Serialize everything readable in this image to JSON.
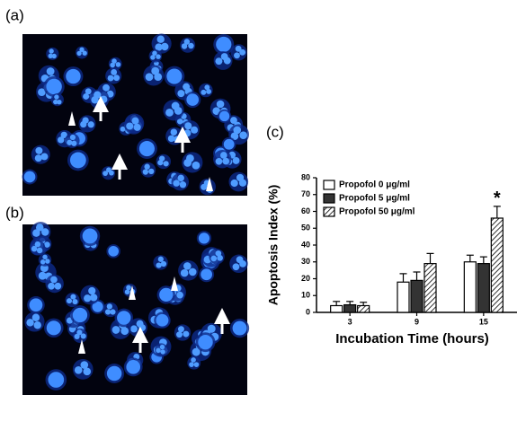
{
  "panels": {
    "a": "(a)",
    "b": "(b)",
    "c": "(c)"
  },
  "chart_data": {
    "type": "bar",
    "y_label": "Apoptosis Index (%)",
    "x_label": "Incubation Time (hours)",
    "categories": [
      "3",
      "9",
      "15"
    ],
    "series": [
      {
        "name": "Propofol 0 μg/ml",
        "color": "#ffffff",
        "values": [
          4,
          18,
          30
        ],
        "errors": [
          2.5,
          5,
          4
        ]
      },
      {
        "name": "Propofol 5 μg/ml",
        "color": "#333333",
        "values": [
          4.5,
          19,
          29
        ],
        "errors": [
          2,
          5,
          4
        ]
      },
      {
        "name": "Propofol 50 μg/ml",
        "color": "#ffffff",
        "pattern": "hatch",
        "values": [
          4,
          29,
          56
        ],
        "errors": [
          2,
          6,
          7
        ]
      }
    ],
    "annotation": "*",
    "ylim": [
      0,
      80
    ],
    "yticks": [
      0,
      10,
      20,
      30,
      40,
      50,
      60,
      70,
      80
    ],
    "legend": "top-left"
  }
}
